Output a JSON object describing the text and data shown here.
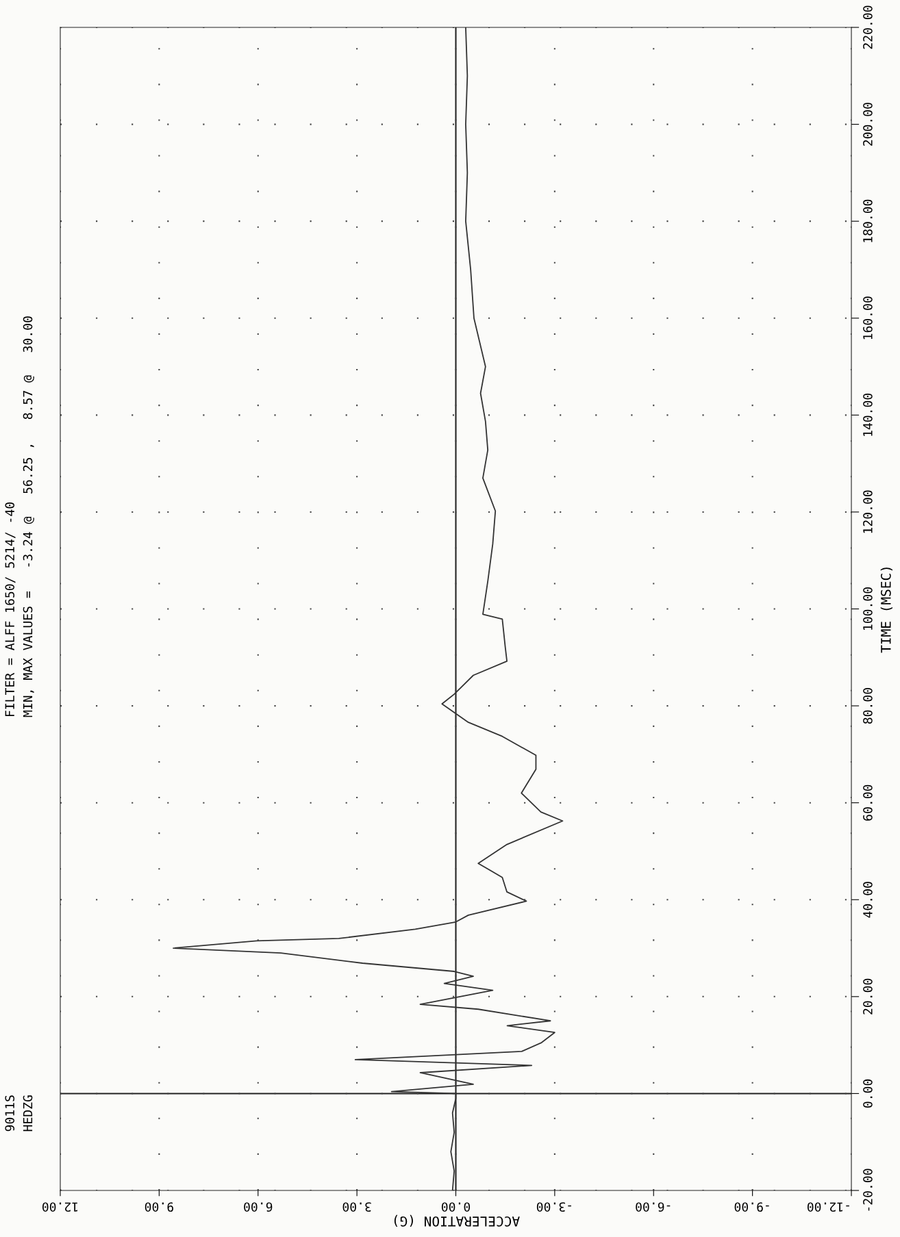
{
  "chart_data": {
    "type": "line",
    "orientation": "horizontal",
    "xlabel": "ACCELERATION (G)",
    "ylabel": "TIME (MSEC)",
    "annotations": [
      "9011S",
      "HEDZG",
      "FILTER = ALFF 1650/ 5214/ -40",
      "MIN, MAX VALUES =   -3.24 @   56.25 ,   8.57 @   30.00"
    ],
    "x": [
      -20,
      -16,
      -12,
      -8,
      -4,
      -1,
      0,
      0.4,
      1.9,
      4.3,
      5.8,
      7.0,
      8.7,
      10.5,
      12.6,
      14.0,
      15.0,
      17.4,
      18.4,
      21.3,
      22.7,
      24.2,
      25.2,
      26.9,
      29.0,
      30.0,
      31.5,
      32.0,
      33.9,
      35.4,
      36.8,
      39.7,
      41.6,
      44.6,
      47.5,
      51.4,
      56.25,
      58.1,
      62.0,
      66.9,
      69.8,
      73.7,
      76.6,
      80.4,
      82.4,
      86.3,
      89.2,
      92.1,
      97.9,
      98.9,
      105.7,
      113.4,
      120.2,
      127.0,
      132.8,
      138.7,
      144.5,
      150,
      160,
      170,
      180,
      190,
      200,
      210,
      220
    ],
    "series": [
      {
        "color": "#333333",
        "values": [
          0.1,
          0.05,
          0.15,
          0.05,
          0.1,
          0.0,
          0.0,
          1.95,
          -0.53,
          1.08,
          -2.3,
          3.05,
          -2.0,
          -2.6,
          -3.0,
          -1.56,
          -2.87,
          -0.68,
          1.08,
          -1.12,
          0.35,
          -0.53,
          0.05,
          2.83,
          5.31,
          8.57,
          6.04,
          3.55,
          1.23,
          0.0,
          -0.38,
          -2.14,
          -1.55,
          -1.41,
          -0.68,
          -1.55,
          -3.24,
          -2.58,
          -1.99,
          -2.43,
          -2.43,
          -1.41,
          -0.38,
          0.42,
          0.05,
          -0.53,
          -1.55,
          -1.5,
          -1.41,
          -0.82,
          -0.97,
          -1.12,
          -1.2,
          -0.82,
          -0.97,
          -0.9,
          -0.75,
          -0.9,
          -0.55,
          -0.45,
          -0.3,
          -0.35,
          -0.3,
          -0.35,
          -0.3
        ]
      }
    ],
    "xlim": [
      12,
      -12
    ],
    "xticks": [
      {
        "value": 12,
        "label": "12.00"
      },
      {
        "value": 9,
        "label": "9.00"
      },
      {
        "value": 6,
        "label": "6.00"
      },
      {
        "value": 3,
        "label": "3.00"
      },
      {
        "value": 0,
        "label": "0.00"
      },
      {
        "value": -3,
        "label": "-3.00"
      },
      {
        "value": -6,
        "label": "-6.00"
      },
      {
        "value": -9,
        "label": "-9.00"
      },
      {
        "value": -12,
        "label": "-12.00"
      }
    ],
    "ylim": [
      -20,
      220
    ],
    "yticks": [
      {
        "value": -20,
        "label": "-20.00"
      },
      {
        "value": 0,
        "label": "0.00"
      },
      {
        "value": 20,
        "label": "20.00"
      },
      {
        "value": 40,
        "label": "40.00"
      },
      {
        "value": 60,
        "label": "60.00"
      },
      {
        "value": 80,
        "label": "80.00"
      },
      {
        "value": 100,
        "label": "100.00"
      },
      {
        "value": 120,
        "label": "120.00"
      },
      {
        "value": 140,
        "label": "140.00"
      },
      {
        "value": 160,
        "label": "160.00"
      },
      {
        "value": 180,
        "label": "180.00"
      },
      {
        "value": 200,
        "label": "200.00"
      },
      {
        "value": 220,
        "label": "220.00"
      }
    ],
    "grid": true
  }
}
